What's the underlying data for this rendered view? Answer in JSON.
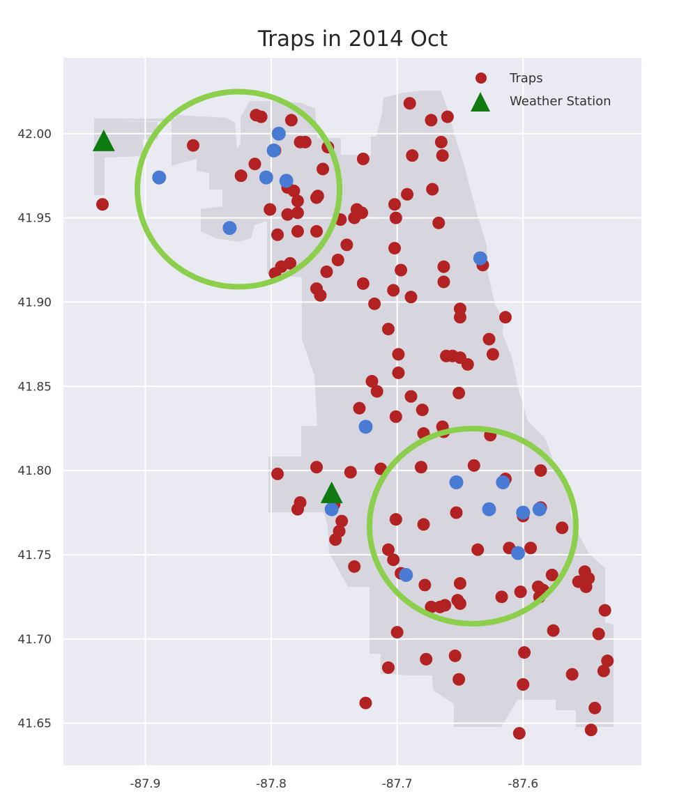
{
  "chart_data": {
    "type": "scatter",
    "title": "Traps in 2014 Oct",
    "xlabel": "",
    "ylabel": "",
    "xlim": [
      -87.965,
      -87.506
    ],
    "ylim": [
      41.625,
      42.045
    ],
    "xticks": [
      -87.9,
      -87.8,
      -87.7,
      -87.6
    ],
    "xtick_labels": [
      "-87.9",
      "-87.8",
      "-87.7",
      "-87.6"
    ],
    "yticks": [
      41.65,
      41.7,
      41.75,
      41.8,
      41.85,
      41.9,
      41.95,
      42.0
    ],
    "ytick_labels": [
      "41.65",
      "41.70",
      "41.75",
      "41.80",
      "41.85",
      "41.90",
      "41.95",
      "42.00"
    ],
    "grid": true,
    "legend": {
      "placement": "top-right",
      "entries": [
        {
          "label": "Traps",
          "marker": "circle",
          "color": "#b22222"
        },
        {
          "label": "Weather Station",
          "marker": "triangle",
          "color": "#0f7a0f"
        }
      ]
    },
    "colors": {
      "background": "#eaeaf2",
      "city_area": "#d7d6de",
      "traps": "#b22222",
      "highlight_points": "#4a7bd4",
      "weather_station": "#0f7a0f",
      "circles": "#8ccf4d",
      "grid": "#ffffff"
    },
    "series": [
      {
        "name": "Traps",
        "points": [
          [
            -87.934,
            41.958
          ],
          [
            -87.862,
            41.993
          ],
          [
            -87.812,
            42.011
          ],
          [
            -87.808,
            42.01
          ],
          [
            -87.784,
            42.008
          ],
          [
            -87.777,
            41.995
          ],
          [
            -87.773,
            41.995
          ],
          [
            -87.755,
            41.992
          ],
          [
            -87.727,
            41.985
          ],
          [
            -87.69,
            42.018
          ],
          [
            -87.673,
            42.008
          ],
          [
            -87.66,
            42.01
          ],
          [
            -87.665,
            41.995
          ],
          [
            -87.688,
            41.987
          ],
          [
            -87.664,
            41.987
          ],
          [
            -87.813,
            41.982
          ],
          [
            -87.824,
            41.975
          ],
          [
            -87.797,
            41.99
          ],
          [
            -87.759,
            41.979
          ],
          [
            -87.787,
            41.968
          ],
          [
            -87.782,
            41.966
          ],
          [
            -87.779,
            41.96
          ],
          [
            -87.764,
            41.962
          ],
          [
            -87.763,
            41.963
          ],
          [
            -87.692,
            41.964
          ],
          [
            -87.672,
            41.967
          ],
          [
            -87.702,
            41.958
          ],
          [
            -87.787,
            41.952
          ],
          [
            -87.779,
            41.953
          ],
          [
            -87.801,
            41.955
          ],
          [
            -87.732,
            41.955
          ],
          [
            -87.728,
            41.953
          ],
          [
            -87.734,
            41.95
          ],
          [
            -87.745,
            41.949
          ],
          [
            -87.701,
            41.95
          ],
          [
            -87.667,
            41.947
          ],
          [
            -87.795,
            41.94
          ],
          [
            -87.779,
            41.942
          ],
          [
            -87.764,
            41.942
          ],
          [
            -87.74,
            41.934
          ],
          [
            -87.702,
            41.932
          ],
          [
            -87.785,
            41.923
          ],
          [
            -87.792,
            41.921
          ],
          [
            -87.797,
            41.917
          ],
          [
            -87.756,
            41.918
          ],
          [
            -87.747,
            41.925
          ],
          [
            -87.697,
            41.919
          ],
          [
            -87.663,
            41.921
          ],
          [
            -87.663,
            41.912
          ],
          [
            -87.632,
            41.922
          ],
          [
            -87.764,
            41.908
          ],
          [
            -87.761,
            41.904
          ],
          [
            -87.727,
            41.911
          ],
          [
            -87.703,
            41.907
          ],
          [
            -87.689,
            41.903
          ],
          [
            -87.718,
            41.899
          ],
          [
            -87.65,
            41.896
          ],
          [
            -87.65,
            41.891
          ],
          [
            -87.614,
            41.891
          ],
          [
            -87.707,
            41.884
          ],
          [
            -87.627,
            41.878
          ],
          [
            -87.699,
            41.869
          ],
          [
            -87.624,
            41.869
          ],
          [
            -87.661,
            41.868
          ],
          [
            -87.656,
            41.868
          ],
          [
            -87.65,
            41.867
          ],
          [
            -87.644,
            41.863
          ],
          [
            -87.699,
            41.858
          ],
          [
            -87.72,
            41.853
          ],
          [
            -87.716,
            41.847
          ],
          [
            -87.651,
            41.846
          ],
          [
            -87.689,
            41.844
          ],
          [
            -87.73,
            41.837
          ],
          [
            -87.68,
            41.836
          ],
          [
            -87.701,
            41.832
          ],
          [
            -87.664,
            41.826
          ],
          [
            -87.663,
            41.823
          ],
          [
            -87.679,
            41.822
          ],
          [
            -87.626,
            41.821
          ],
          [
            -87.795,
            41.798
          ],
          [
            -87.764,
            41.802
          ],
          [
            -87.737,
            41.799
          ],
          [
            -87.713,
            41.801
          ],
          [
            -87.681,
            41.802
          ],
          [
            -87.639,
            41.803
          ],
          [
            -87.614,
            41.795
          ],
          [
            -87.586,
            41.8
          ],
          [
            -87.777,
            41.781
          ],
          [
            -87.779,
            41.777
          ],
          [
            -87.75,
            41.78
          ],
          [
            -87.744,
            41.77
          ],
          [
            -87.701,
            41.771
          ],
          [
            -87.679,
            41.768
          ],
          [
            -87.653,
            41.775
          ],
          [
            -87.6,
            41.773
          ],
          [
            -87.586,
            41.778
          ],
          [
            -87.569,
            41.766
          ],
          [
            -87.746,
            41.764
          ],
          [
            -87.749,
            41.759
          ],
          [
            -87.707,
            41.753
          ],
          [
            -87.636,
            41.753
          ],
          [
            -87.611,
            41.754
          ],
          [
            -87.594,
            41.754
          ],
          [
            -87.703,
            41.747
          ],
          [
            -87.734,
            41.743
          ],
          [
            -87.697,
            41.739
          ],
          [
            -87.577,
            41.738
          ],
          [
            -87.551,
            41.74
          ],
          [
            -87.548,
            41.736
          ],
          [
            -87.556,
            41.734
          ],
          [
            -87.55,
            41.731
          ],
          [
            -87.678,
            41.732
          ],
          [
            -87.65,
            41.733
          ],
          [
            -87.588,
            41.731
          ],
          [
            -87.584,
            41.729
          ],
          [
            -87.587,
            41.725
          ],
          [
            -87.602,
            41.728
          ],
          [
            -87.617,
            41.725
          ],
          [
            -87.652,
            41.723
          ],
          [
            -87.65,
            41.721
          ],
          [
            -87.662,
            41.72
          ],
          [
            -87.666,
            41.719
          ],
          [
            -87.673,
            41.719
          ],
          [
            -87.535,
            41.717
          ],
          [
            -87.7,
            41.704
          ],
          [
            -87.576,
            41.705
          ],
          [
            -87.54,
            41.703
          ],
          [
            -87.599,
            41.692
          ],
          [
            -87.654,
            41.69
          ],
          [
            -87.677,
            41.688
          ],
          [
            -87.533,
            41.687
          ],
          [
            -87.536,
            41.681
          ],
          [
            -87.707,
            41.683
          ],
          [
            -87.561,
            41.679
          ],
          [
            -87.651,
            41.676
          ],
          [
            -87.6,
            41.673
          ],
          [
            -87.725,
            41.662
          ],
          [
            -87.543,
            41.659
          ],
          [
            -87.546,
            41.646
          ],
          [
            -87.603,
            41.644
          ]
        ]
      },
      {
        "name": "",
        "points": [
          [
            -87.889,
            41.974
          ],
          [
            -87.794,
            42.0
          ],
          [
            -87.798,
            41.99
          ],
          [
            -87.804,
            41.974
          ],
          [
            -87.788,
            41.972
          ],
          [
            -87.833,
            41.944
          ],
          [
            -87.634,
            41.926
          ],
          [
            -87.725,
            41.826
          ],
          [
            -87.653,
            41.793
          ],
          [
            -87.616,
            41.793
          ],
          [
            -87.627,
            41.777
          ],
          [
            -87.6,
            41.775
          ],
          [
            -87.587,
            41.777
          ],
          [
            -87.752,
            41.777
          ],
          [
            -87.693,
            41.738
          ],
          [
            -87.604,
            41.751
          ]
        ]
      },
      {
        "name": "Weather Station",
        "points": [
          [
            -87.933,
            41.995
          ],
          [
            -87.752,
            41.786
          ]
        ]
      }
    ],
    "annotations": [
      {
        "type": "circle",
        "center": [
          -87.826,
          41.967
        ]
      },
      {
        "type": "circle",
        "center": [
          -87.64,
          41.767
        ]
      }
    ]
  }
}
